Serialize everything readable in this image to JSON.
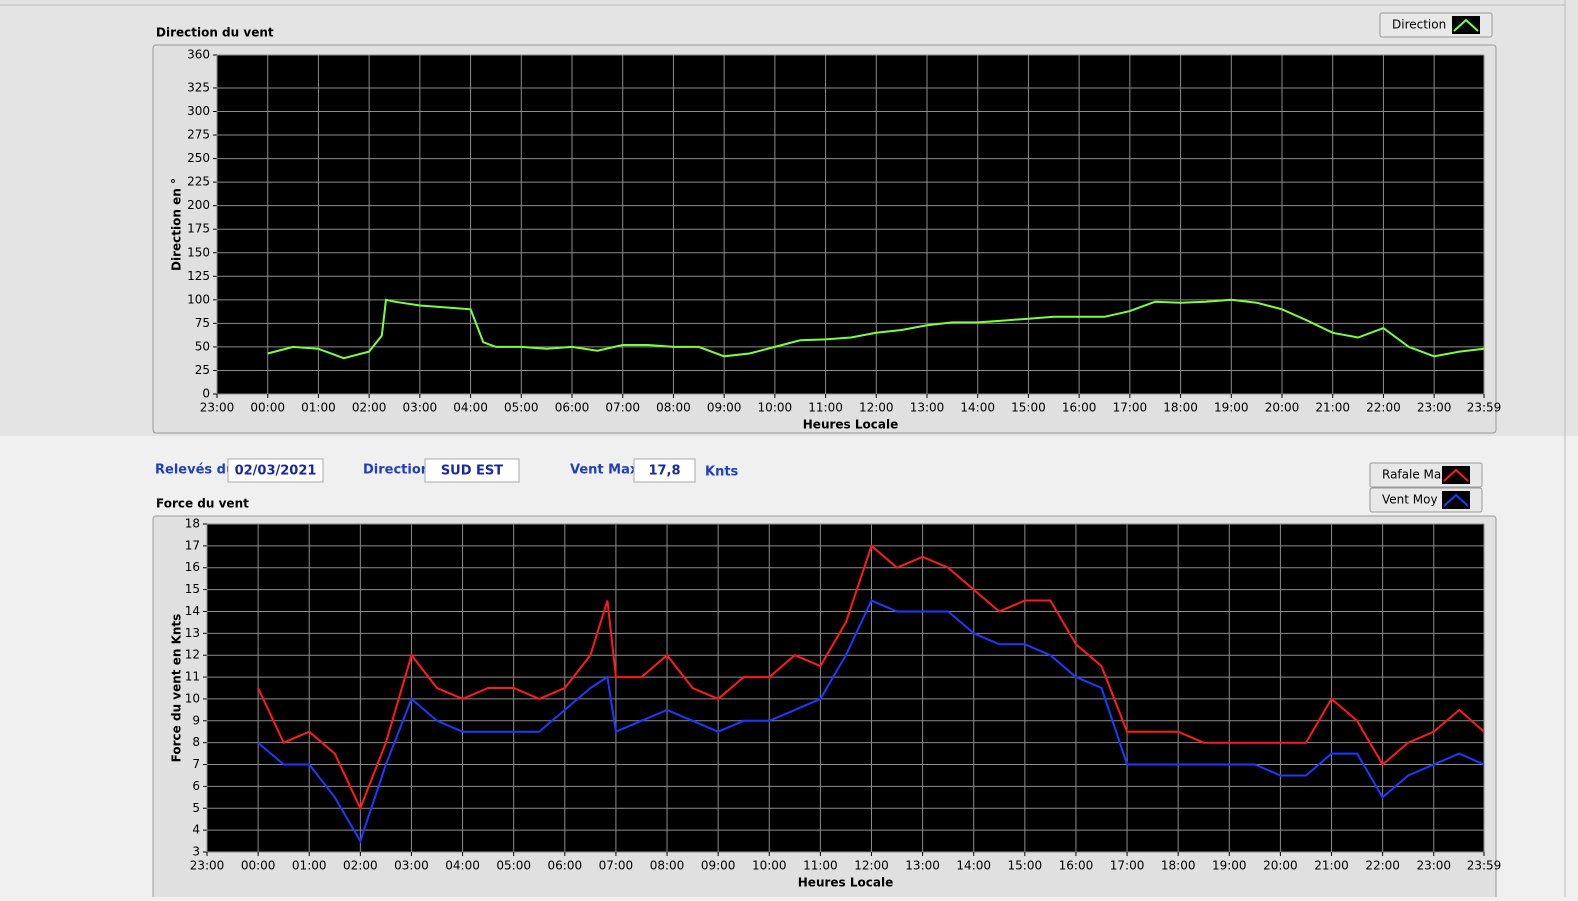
{
  "chart_data": [
    {
      "type": "line",
      "title": "Direction du vent",
      "ylabel": "Direction en °",
      "xlabel": "Heures Locale",
      "grid": true,
      "legend": "top-right",
      "xlim": [
        -1,
        23.983
      ],
      "ylim": [
        0,
        360
      ],
      "xticks": [
        {
          "value": -1,
          "label": "23:00"
        },
        {
          "value": 0,
          "label": "00:00"
        },
        {
          "value": 1,
          "label": "01:00"
        },
        {
          "value": 2,
          "label": "02:00"
        },
        {
          "value": 3,
          "label": "03:00"
        },
        {
          "value": 4,
          "label": "04:00"
        },
        {
          "value": 5,
          "label": "05:00"
        },
        {
          "value": 6,
          "label": "06:00"
        },
        {
          "value": 7,
          "label": "07:00"
        },
        {
          "value": 8,
          "label": "08:00"
        },
        {
          "value": 9,
          "label": "09:00"
        },
        {
          "value": 10,
          "label": "10:00"
        },
        {
          "value": 11,
          "label": "11:00"
        },
        {
          "value": 12,
          "label": "12:00"
        },
        {
          "value": 13,
          "label": "13:00"
        },
        {
          "value": 14,
          "label": "14:00"
        },
        {
          "value": 15,
          "label": "15:00"
        },
        {
          "value": 16,
          "label": "16:00"
        },
        {
          "value": 17,
          "label": "17:00"
        },
        {
          "value": 18,
          "label": "18:00"
        },
        {
          "value": 19,
          "label": "19:00"
        },
        {
          "value": 20,
          "label": "20:00"
        },
        {
          "value": 21,
          "label": "21:00"
        },
        {
          "value": 22,
          "label": "22:00"
        },
        {
          "value": 23,
          "label": "23:00"
        },
        {
          "value": 23.983,
          "label": "23:59"
        }
      ],
      "yticks": [
        0,
        25,
        50,
        75,
        100,
        125,
        150,
        175,
        200,
        225,
        250,
        275,
        300,
        325,
        360
      ],
      "x": [
        0,
        0.5,
        1,
        1.5,
        2,
        2.25,
        2.333,
        2.5,
        3,
        3.5,
        4,
        4.25,
        4.5,
        5,
        5.5,
        6,
        6.5,
        7,
        7.5,
        8,
        8.5,
        9,
        9.5,
        10,
        10.5,
        11,
        11.5,
        12,
        12.5,
        13,
        13.5,
        14,
        14.5,
        15,
        15.5,
        16,
        16.5,
        17,
        17.5,
        18,
        18.5,
        19,
        19.5,
        20,
        20.5,
        21,
        21.5,
        22,
        22.5,
        23,
        23.5,
        23.983
      ],
      "series": [
        {
          "name": "Direction",
          "color": "#7cff3a",
          "values": [
            43,
            50,
            48,
            38,
            45,
            62,
            100,
            98,
            94,
            92,
            90,
            55,
            50,
            50,
            48,
            50,
            46,
            52,
            52,
            50,
            50,
            40,
            43,
            50,
            57,
            58,
            60,
            65,
            68,
            73,
            76,
            76,
            78,
            80,
            82,
            82,
            82,
            88,
            98,
            97,
            98,
            100,
            97,
            90,
            78,
            65,
            60,
            70,
            50,
            40,
            45,
            48
          ]
        }
      ]
    },
    {
      "type": "line",
      "title": "Force du vent",
      "ylabel": "Force du vent en Knts",
      "xlabel": "Heures Locale",
      "grid": true,
      "legend": "top-right",
      "xlim": [
        -1,
        23.983
      ],
      "ylim": [
        3,
        18
      ],
      "xticks": [
        {
          "value": -1,
          "label": "23:00"
        },
        {
          "value": 0,
          "label": "00:00"
        },
        {
          "value": 1,
          "label": "01:00"
        },
        {
          "value": 2,
          "label": "02:00"
        },
        {
          "value": 3,
          "label": "03:00"
        },
        {
          "value": 4,
          "label": "04:00"
        },
        {
          "value": 5,
          "label": "05:00"
        },
        {
          "value": 6,
          "label": "06:00"
        },
        {
          "value": 7,
          "label": "07:00"
        },
        {
          "value": 8,
          "label": "08:00"
        },
        {
          "value": 9,
          "label": "09:00"
        },
        {
          "value": 10,
          "label": "10:00"
        },
        {
          "value": 11,
          "label": "11:00"
        },
        {
          "value": 12,
          "label": "12:00"
        },
        {
          "value": 13,
          "label": "13:00"
        },
        {
          "value": 14,
          "label": "14:00"
        },
        {
          "value": 15,
          "label": "15:00"
        },
        {
          "value": 16,
          "label": "16:00"
        },
        {
          "value": 17,
          "label": "17:00"
        },
        {
          "value": 18,
          "label": "18:00"
        },
        {
          "value": 19,
          "label": "19:00"
        },
        {
          "value": 20,
          "label": "20:00"
        },
        {
          "value": 21,
          "label": "21:00"
        },
        {
          "value": 22,
          "label": "22:00"
        },
        {
          "value": 23,
          "label": "23:00"
        },
        {
          "value": 23.983,
          "label": "23:59"
        }
      ],
      "yticks": [
        3,
        4,
        5,
        6,
        7,
        8,
        9,
        10,
        11,
        12,
        13,
        14,
        15,
        16,
        17,
        18
      ],
      "x": [
        0,
        0.5,
        1,
        1.5,
        2,
        2.5,
        3,
        3.5,
        4,
        4.5,
        5,
        5.5,
        6,
        6.5,
        6.833,
        7,
        7.5,
        8,
        8.5,
        9,
        9.5,
        10,
        10.5,
        11,
        11.5,
        12,
        12.5,
        13,
        13.5,
        14,
        14.5,
        15,
        15.5,
        16,
        16.5,
        17,
        17.5,
        18,
        18.5,
        19,
        19.5,
        20,
        20.5,
        21,
        21.5,
        22,
        22.5,
        23,
        23.5,
        23.983
      ],
      "series": [
        {
          "name": "Rafale Max",
          "color": "#ff1a1a",
          "values": [
            10.5,
            8,
            8.5,
            7.5,
            5,
            8,
            12,
            10.5,
            10,
            10.5,
            10.5,
            10,
            10.5,
            12,
            14.5,
            11,
            11,
            12,
            10.5,
            10,
            11,
            11,
            12,
            11.5,
            13.5,
            17,
            16,
            16.5,
            16,
            15,
            14,
            14.5,
            14.5,
            12.5,
            11.5,
            8.5,
            8.5,
            8.5,
            8,
            8,
            8,
            8,
            8,
            10,
            9,
            7,
            8,
            8.5,
            9.5,
            8.5
          ]
        },
        {
          "name": "Vent Moy",
          "color": "#1a3aff",
          "values": [
            8,
            7,
            7,
            5.5,
            3.5,
            7,
            10,
            9,
            8.5,
            8.5,
            8.5,
            8.5,
            9.5,
            10.5,
            11,
            8.5,
            9,
            9.5,
            9,
            8.5,
            9,
            9,
            9.5,
            10,
            12,
            14.5,
            14,
            14,
            14,
            13,
            12.5,
            12.5,
            12,
            11,
            10.5,
            7,
            7,
            7,
            7,
            7,
            7,
            6.5,
            6.5,
            7.5,
            7.5,
            5.5,
            6.5,
            7,
            7.5,
            7
          ]
        }
      ]
    }
  ],
  "fields": [
    {
      "label": "Relevés du",
      "value": "02/03/2021"
    },
    {
      "label": "Direction",
      "value": "SUD EST"
    },
    {
      "label": "Vent Max",
      "value": "17,8",
      "unit": "Knts"
    }
  ]
}
